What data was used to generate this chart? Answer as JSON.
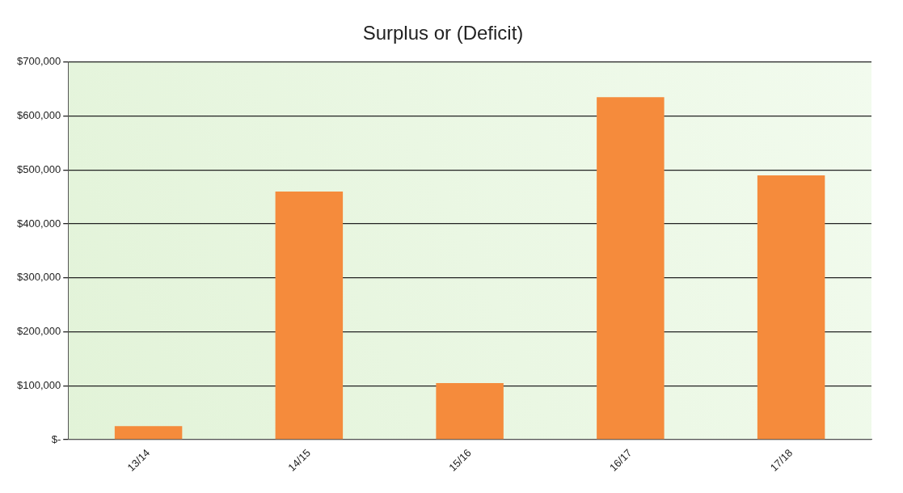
{
  "chart_data": {
    "type": "bar",
    "title": "Surplus or (Deficit)",
    "categories": [
      "13/14",
      "14/15",
      "15/16",
      "16/17",
      "17/18"
    ],
    "values": [
      25000,
      460000,
      105000,
      635000,
      490000
    ],
    "color": "#f58b3c",
    "ylim": [
      0,
      700000
    ],
    "yticks": [
      {
        "value": 0,
        "label": "$-"
      },
      {
        "value": 100000,
        "label": "$100,000"
      },
      {
        "value": 200000,
        "label": "$200,000"
      },
      {
        "value": 300000,
        "label": "$300,000"
      },
      {
        "value": 400000,
        "label": "$400,000"
      },
      {
        "value": 500000,
        "label": "$500,000"
      },
      {
        "value": 600000,
        "label": "$600,000"
      },
      {
        "value": 700000,
        "label": "$700,000"
      }
    ],
    "grid": "y"
  }
}
